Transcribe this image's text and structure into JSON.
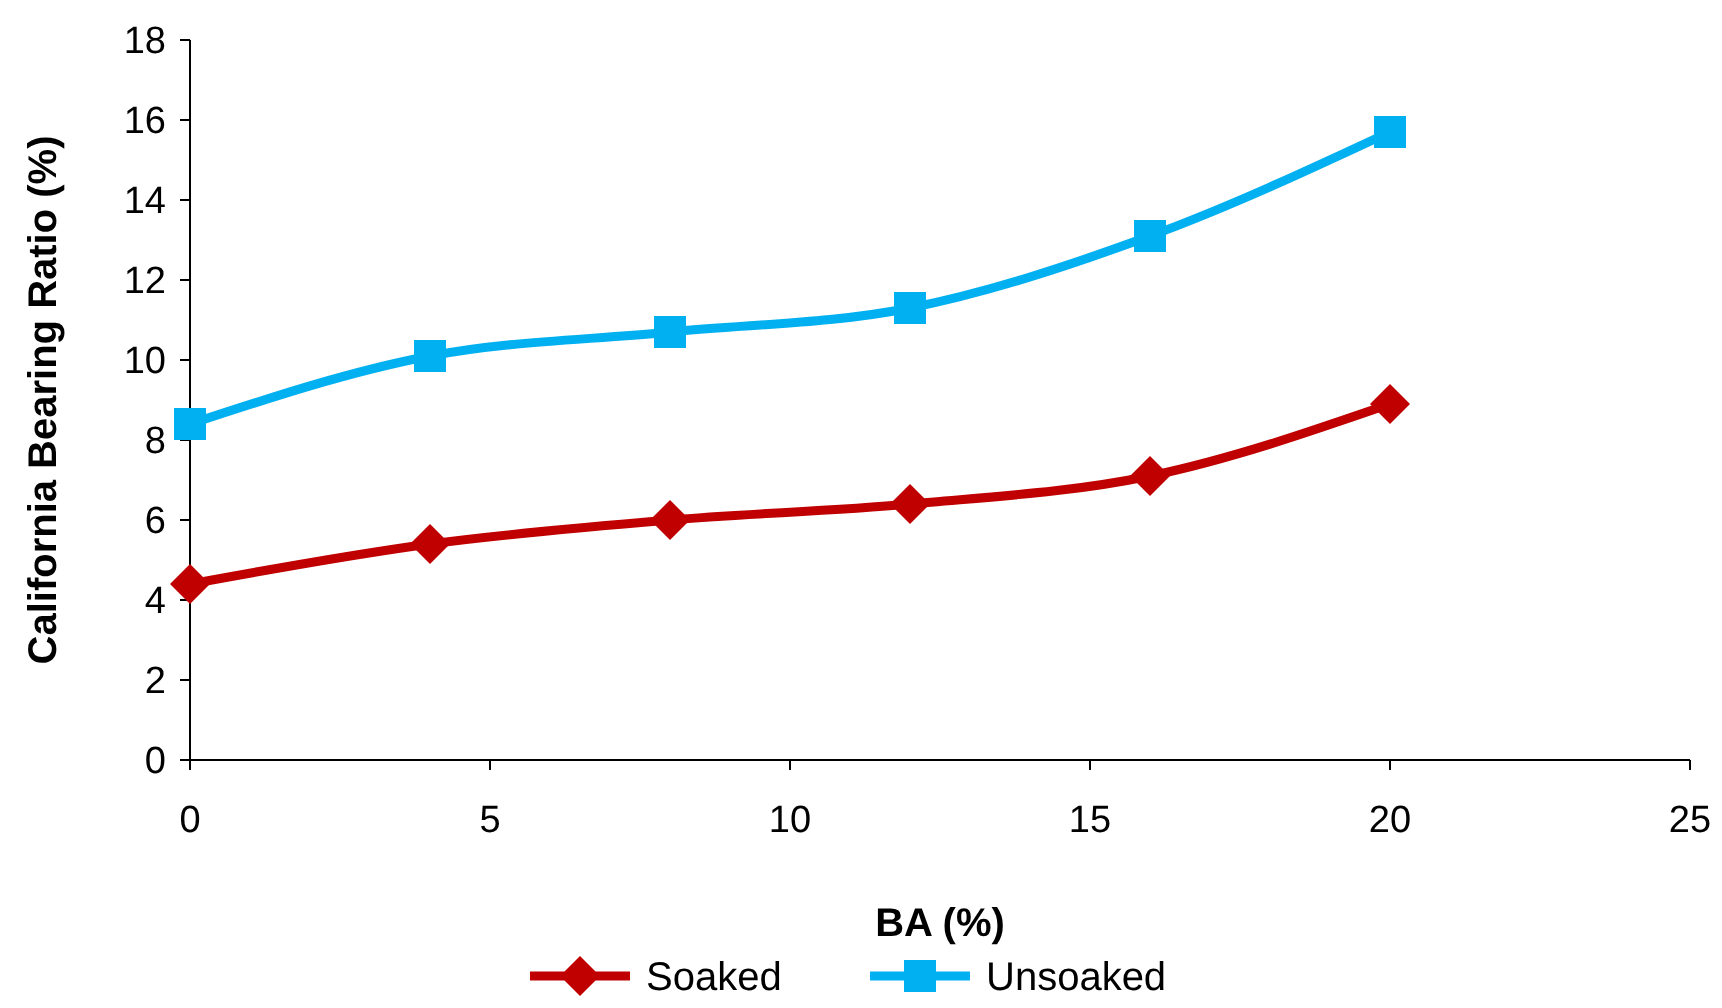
{
  "chart_data": {
    "type": "line",
    "xlabel": "BA (%)",
    "ylabel": "California Bearing Ratio (%)",
    "x": [
      0,
      4,
      8,
      12,
      16,
      20
    ],
    "series": [
      {
        "name": "Soaked",
        "color": "#c00000",
        "marker": "diamond",
        "values": [
          4.4,
          5.4,
          6.0,
          6.4,
          7.1,
          8.9
        ]
      },
      {
        "name": "Unsoaked",
        "color": "#00b0f0",
        "marker": "square",
        "values": [
          8.4,
          10.1,
          10.7,
          11.3,
          13.1,
          15.7
        ]
      }
    ],
    "xlim": [
      0,
      25
    ],
    "xticks": [
      0,
      5,
      10,
      15,
      20,
      25
    ],
    "ylim": [
      0,
      18
    ],
    "yticks": [
      0,
      2,
      4,
      6,
      8,
      10,
      12,
      14,
      16,
      18
    ],
    "grid": false,
    "legend": "bottom"
  }
}
